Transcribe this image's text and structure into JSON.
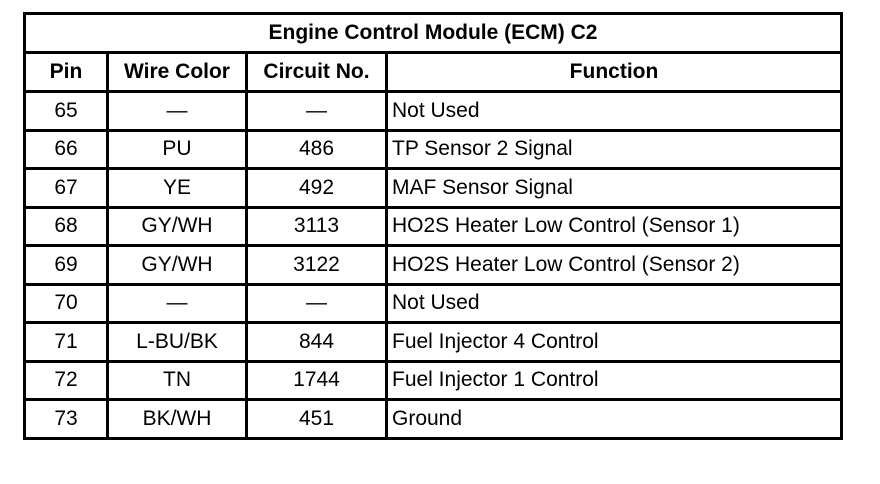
{
  "title": "Engine Control Module (ECM) C2",
  "headers": [
    "Pin",
    "Wire Color",
    "Circuit No.",
    "Function"
  ],
  "rows": [
    {
      "pin": "65",
      "wire": "—",
      "circuit": "—",
      "function": "Not Used"
    },
    {
      "pin": "66",
      "wire": "PU",
      "circuit": "486",
      "function": "TP Sensor 2 Signal"
    },
    {
      "pin": "67",
      "wire": "YE",
      "circuit": "492",
      "function": "MAF Sensor Signal"
    },
    {
      "pin": "68",
      "wire": "GY/WH",
      "circuit": "3113",
      "function": "HO2S Heater Low Control (Sensor 1)"
    },
    {
      "pin": "69",
      "wire": "GY/WH",
      "circuit": "3122",
      "function": "HO2S Heater Low Control (Sensor 2)"
    },
    {
      "pin": "70",
      "wire": "—",
      "circuit": "—",
      "function": "Not Used"
    },
    {
      "pin": "71",
      "wire": "L-BU/BK",
      "circuit": "844",
      "function": "Fuel Injector 4 Control"
    },
    {
      "pin": "72",
      "wire": "TN",
      "circuit": "1744",
      "function": "Fuel Injector 1 Control"
    },
    {
      "pin": "73",
      "wire": "BK/WH",
      "circuit": "451",
      "function": "Ground"
    }
  ]
}
